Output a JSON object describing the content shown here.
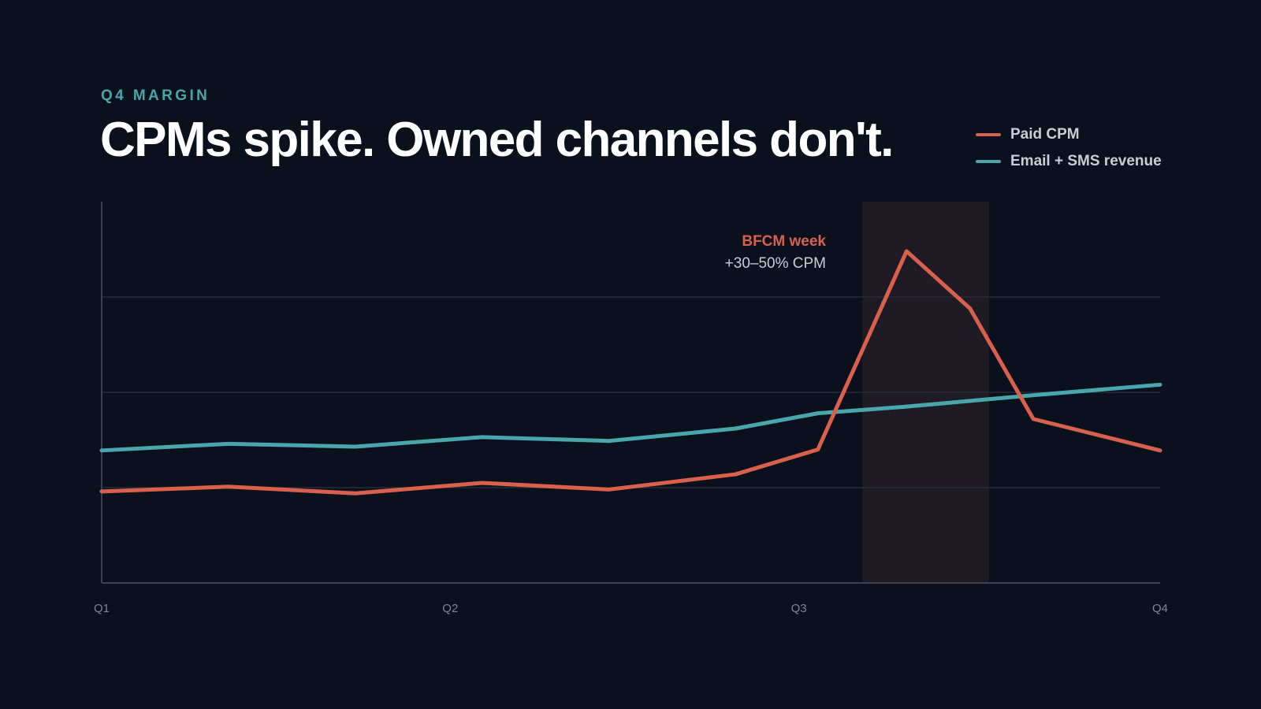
{
  "header": {
    "eyebrow": "Q4 MARGIN",
    "title": "CPMs spike. Owned channels don't."
  },
  "legend": [
    {
      "label": "Paid CPM",
      "color": "#d9604c"
    },
    {
      "label": "Email + SMS revenue",
      "color": "#4aa6ad"
    }
  ],
  "chart_data": {
    "type": "line",
    "x_ticks": [
      {
        "label": "Q1",
        "x": 0
      },
      {
        "label": "Q2",
        "x": 5.5
      },
      {
        "label": "Q3",
        "x": 11
      },
      {
        "label": "Q4",
        "x": 16.7
      }
    ],
    "xlim": [
      0,
      16.7
    ],
    "ylim": [
      0,
      4
    ],
    "grid": true,
    "gridlines": [
      1,
      2,
      3
    ],
    "legend_position": "top-right",
    "series": [
      {
        "name": "Paid CPM",
        "color": "#d9604c",
        "x": [
          0,
          2,
          4,
          6,
          8,
          10,
          11.3,
          12.7,
          13.7,
          14.7,
          16.7
        ],
        "y": [
          0.96,
          1.01,
          0.94,
          1.05,
          0.98,
          1.14,
          1.4,
          3.48,
          2.88,
          1.72,
          1.39
        ]
      },
      {
        "name": "Email + SMS revenue",
        "color": "#4aa6ad",
        "x": [
          0,
          2,
          4,
          6,
          8,
          10,
          11.3,
          12.7,
          13.7,
          14.7,
          16.7
        ],
        "y": [
          1.39,
          1.46,
          1.43,
          1.53,
          1.49,
          1.62,
          1.78,
          1.85,
          1.91,
          1.97,
          2.08
        ]
      }
    ],
    "highlight": {
      "x_start": 12,
      "x_end": 14,
      "color": "#1e1b25"
    },
    "annotation": {
      "title": "BFCM week",
      "subtitle": "+30–50% CPM",
      "title_color": "#d9604c",
      "subtitle_color": "#c9cdd6"
    }
  }
}
